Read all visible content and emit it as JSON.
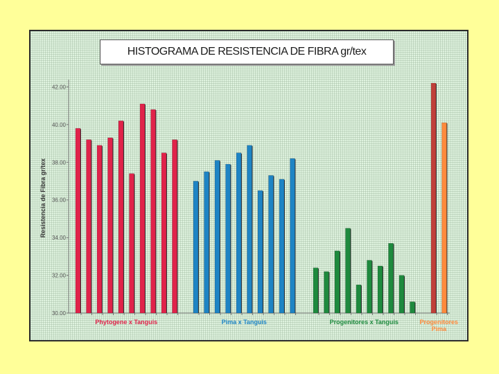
{
  "chart_data": {
    "type": "bar",
    "title": "HISTOGRAMA DE RESISTENCIA DE FIBRA gr/tex",
    "ylabel": "Resistencia de Fibra gr/tex",
    "xlabel": "",
    "ylim": [
      30.0,
      42.2
    ],
    "yticks": [
      30.0,
      32.0,
      34.0,
      36.0,
      38.0,
      40.0,
      42.0
    ],
    "ytick_labels": [
      "30.00",
      "32.00",
      "34.00",
      "36.00",
      "38.00",
      "40.00",
      "42.00"
    ],
    "groups": [
      {
        "name": "Phytogene x Tanguis",
        "label_lines": [
          "Phytogene x Tanguis"
        ],
        "color": "#e0234a",
        "values": [
          39.8,
          39.2,
          38.9,
          39.3,
          40.2,
          37.4,
          41.1,
          40.8,
          38.5,
          39.2
        ]
      },
      {
        "name": "Pima x Tanguis",
        "label_lines": [
          "Pima x Tanguis"
        ],
        "color": "#1e84c4",
        "values": [
          37.0,
          37.5,
          38.1,
          37.9,
          38.5,
          38.9,
          36.5,
          37.3,
          37.1,
          38.2
        ]
      },
      {
        "name": "Progenitores x Tanguis",
        "label_lines": [
          "Progenitores x Tanguis"
        ],
        "color": "#1e8a3e",
        "values": [
          32.4,
          32.2,
          33.3,
          34.5,
          31.5,
          32.8,
          32.5,
          33.7,
          32.0,
          30.6
        ]
      },
      {
        "name": "Progenitores Pima",
        "label_lines": [
          "Progenitores",
          "Pima"
        ],
        "color": "#ff8a3c",
        "values": [
          42.2,
          40.1
        ],
        "bar_colors": [
          "#c0403a",
          "#ff8a3c"
        ]
      }
    ]
  }
}
